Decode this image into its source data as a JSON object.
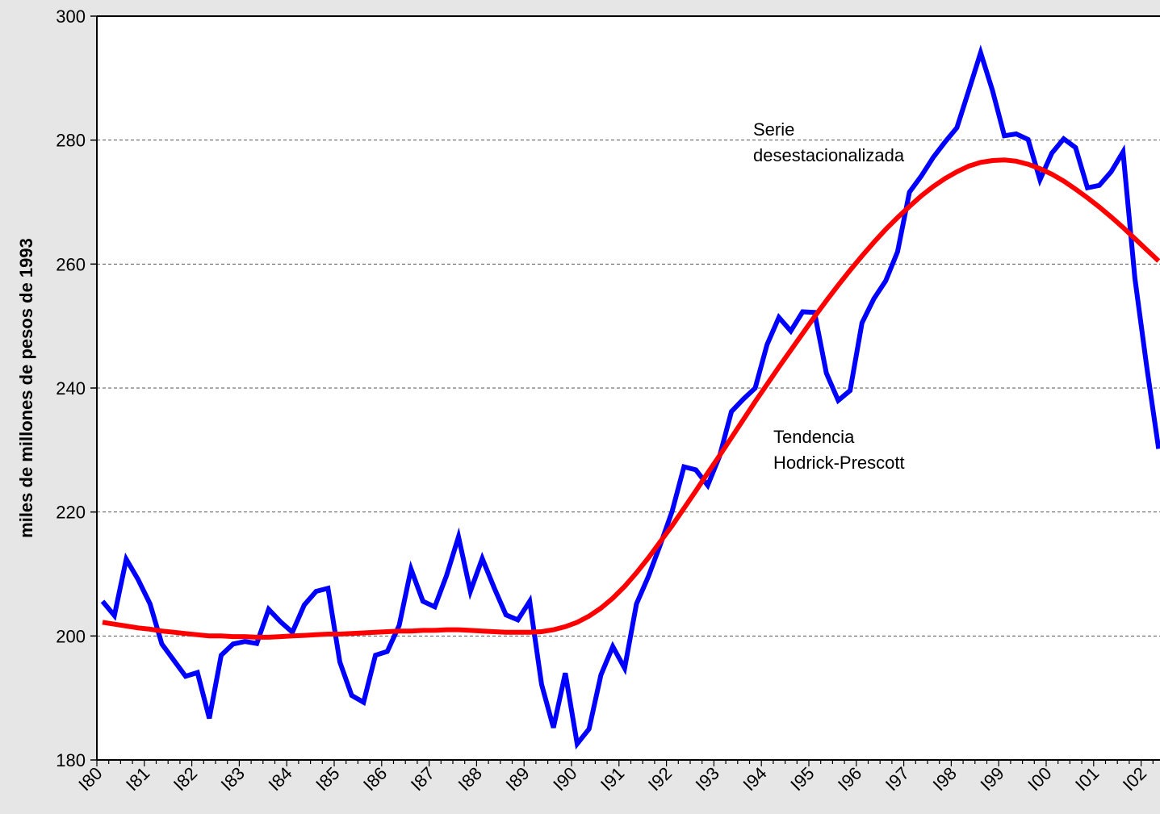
{
  "chart_data": {
    "type": "line",
    "y_label": "miles de millones de pesos de 1993",
    "categories": [
      "I80",
      null,
      null,
      null,
      "I81",
      null,
      null,
      null,
      "I82",
      null,
      null,
      null,
      "I83",
      null,
      null,
      null,
      "I84",
      null,
      null,
      null,
      "I85",
      null,
      null,
      null,
      "I86",
      null,
      null,
      null,
      "I87",
      null,
      null,
      null,
      "I88",
      null,
      null,
      null,
      "I89",
      null,
      null,
      null,
      "I90",
      null,
      null,
      null,
      "I91",
      null,
      null,
      null,
      "I92",
      null,
      null,
      null,
      "I93",
      null,
      null,
      null,
      "I94",
      null,
      null,
      null,
      "I95",
      null,
      null,
      null,
      "I96",
      null,
      null,
      null,
      "I97",
      null,
      null,
      null,
      "I98",
      null,
      null,
      null,
      "I99",
      null,
      null,
      null,
      "I00",
      null,
      null,
      null,
      "I01",
      null,
      null,
      null,
      "I02",
      null
    ],
    "series": [
      {
        "label": [
          "Serie",
          "desestacionalizada"
        ],
        "color": "#0000ff",
        "values": [
          205.6,
          203.3,
          212.4,
          209.1,
          205.2,
          198.7,
          196.1,
          193.5,
          194.1,
          186.7,
          196.9,
          198.7,
          199.1,
          198.8,
          204.3,
          202.3,
          200.6,
          205.0,
          207.2,
          207.7,
          195.8,
          190.4,
          189.3,
          196.9,
          197.5,
          201.7,
          210.8,
          205.6,
          204.7,
          209.8,
          216.0,
          207.2,
          212.5,
          207.8,
          203.4,
          202.6,
          205.6,
          192.2,
          185.2,
          194.0,
          182.6,
          185.0,
          193.7,
          198.3,
          194.8,
          205.2,
          209.6,
          214.7,
          220.1,
          227.3,
          226.8,
          224.3,
          229.0,
          236.2,
          238.2,
          240.0,
          247.0,
          251.4,
          249.2,
          252.3,
          252.2,
          242.4,
          238.0,
          239.6,
          250.5,
          254.4,
          257.3,
          262.0,
          271.6,
          274.2,
          277.2,
          279.7,
          282.0,
          288.0,
          294.1,
          288.0,
          280.7,
          281.0,
          280.1,
          273.6,
          277.9,
          280.2,
          278.8,
          272.3,
          272.7,
          274.9,
          278.1,
          257.7,
          243.4,
          230.2
        ]
      },
      {
        "label": [
          "Tendencia",
          "Hodrick-Prescott"
        ],
        "color": "#ff0000",
        "values": [
          202.2,
          201.9,
          201.6,
          201.3,
          201.1,
          200.8,
          200.6,
          200.4,
          200.2,
          200.0,
          200.0,
          199.9,
          199.9,
          199.8,
          199.8,
          199.9,
          200.0,
          200.1,
          200.2,
          200.3,
          200.3,
          200.4,
          200.5,
          200.6,
          200.7,
          200.8,
          200.8,
          200.9,
          200.9,
          201.0,
          201.0,
          200.9,
          200.8,
          200.7,
          200.6,
          200.6,
          200.6,
          200.7,
          201.0,
          201.5,
          202.2,
          203.2,
          204.5,
          206.1,
          208.0,
          210.2,
          212.6,
          215.2,
          217.8,
          220.6,
          223.4,
          226.3,
          229.1,
          232.0,
          234.9,
          237.8,
          240.6,
          243.4,
          246.1,
          248.8,
          251.5,
          254.1,
          256.6,
          259.0,
          261.3,
          263.5,
          265.6,
          267.5,
          269.3,
          271.0,
          272.5,
          273.8,
          274.9,
          275.8,
          276.4,
          276.7,
          276.8,
          276.6,
          276.1,
          275.4,
          274.5,
          273.4,
          272.1,
          270.7,
          269.2,
          267.6,
          265.9,
          264.1,
          262.3,
          260.5
        ]
      }
    ],
    "ylim": [
      180,
      300
    ],
    "yticks": [
      180,
      200,
      220,
      240,
      260,
      280,
      300
    ],
    "grid": true
  }
}
